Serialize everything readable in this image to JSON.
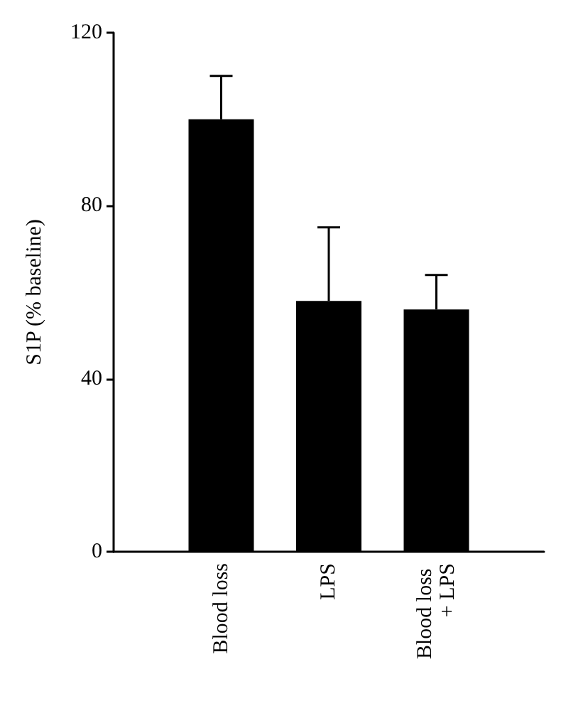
{
  "chart_data": {
    "type": "bar",
    "ylabel": "S1P (% baseline)",
    "categories": [
      "Blood loss",
      "LPS",
      "Blood loss + LPS"
    ],
    "values": [
      100,
      58,
      56
    ],
    "color": "#000000",
    "errors": [
      [
        100,
        110
      ],
      [
        58,
        75
      ],
      [
        56,
        64
      ]
    ],
    "ylim": [
      0,
      120
    ],
    "yticks": [
      0,
      40,
      80,
      120
    ],
    "grid": false
  }
}
